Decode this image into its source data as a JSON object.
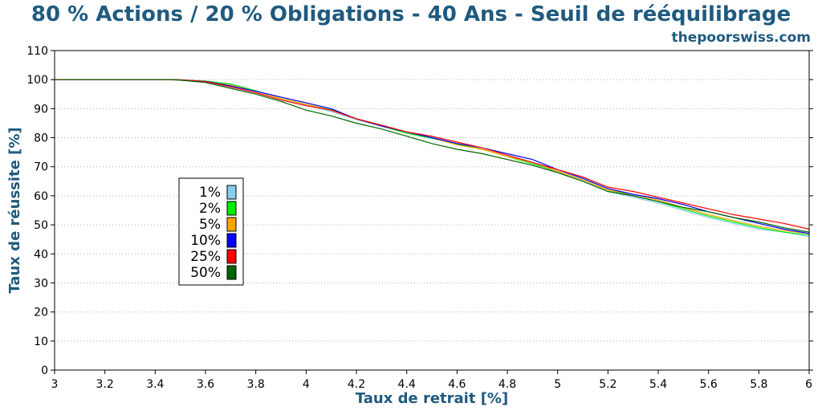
{
  "chart_data": {
    "type": "line",
    "title": "80 % Actions / 20 % Obligations - 40 Ans - Seuil de rééquilibrage",
    "watermark": "thepoorswiss.com",
    "xlabel": "Taux de retrait [%]",
    "ylabel": "Taux de réussite [%]",
    "xlim": [
      3,
      6
    ],
    "ylim": [
      0,
      110
    ],
    "xticks": [
      3,
      3.2,
      3.4,
      3.6,
      3.8,
      4,
      4.2,
      4.4,
      4.6,
      4.8,
      5,
      5.2,
      5.4,
      5.6,
      5.8,
      6
    ],
    "xtick_labels": [
      "3",
      "3.2",
      "3.4",
      "3.6",
      "3.8",
      "4",
      "4.2",
      "4.4",
      "4.6",
      "4.8",
      "5",
      "5.2",
      "5.4",
      "5.6",
      "5.8",
      "6"
    ],
    "yticks": [
      0,
      10,
      20,
      30,
      40,
      50,
      60,
      70,
      80,
      90,
      100,
      110
    ],
    "grid": "horizontal dotted",
    "legend_position": "center-left",
    "title_color": "#1f5a7f",
    "axis_label_color": "#1f5a7f",
    "x": [
      3.0,
      3.45,
      3.5,
      3.6,
      3.7,
      3.8,
      3.9,
      4.0,
      4.1,
      4.2,
      4.3,
      4.4,
      4.5,
      4.6,
      4.7,
      4.8,
      4.9,
      5.0,
      5.1,
      5.2,
      5.3,
      5.4,
      5.5,
      5.6,
      5.7,
      5.8,
      5.9,
      6.0
    ],
    "series": [
      {
        "name": "1%",
        "color": "#87ceeb",
        "values": [
          100,
          100,
          99.9,
          99.4,
          98.2,
          96.0,
          93.5,
          91.3,
          89.0,
          86.2,
          84.0,
          81.8,
          80.2,
          78.0,
          76.5,
          74.0,
          71.5,
          68.0,
          65.0,
          61.5,
          59.5,
          57.5,
          55.0,
          52.5,
          50.5,
          48.5,
          47.5,
          46.0
        ]
      },
      {
        "name": "2%",
        "color": "#00ee00",
        "values": [
          100,
          100,
          99.9,
          99.5,
          98.5,
          96.2,
          93.5,
          91.5,
          89.6,
          86.5,
          84.0,
          81.5,
          79.8,
          77.8,
          76.0,
          73.5,
          71.0,
          68.5,
          65.5,
          62.0,
          60.0,
          58.0,
          55.5,
          53.0,
          51.0,
          49.0,
          47.5,
          46.5
        ]
      },
      {
        "name": "5%",
        "color": "#ffa500",
        "values": [
          100,
          100,
          99.9,
          99.4,
          98.0,
          96.0,
          93.5,
          91.5,
          89.4,
          86.5,
          84.2,
          82.0,
          80.0,
          77.5,
          76.0,
          73.5,
          71.5,
          68.5,
          65.5,
          62.0,
          60.5,
          58.5,
          56.0,
          53.5,
          51.5,
          49.5,
          48.0,
          47.0
        ]
      },
      {
        "name": "10%",
        "color": "#0000ff",
        "values": [
          100,
          100,
          99.9,
          99.4,
          97.8,
          96.0,
          94.0,
          92.0,
          90.0,
          86.5,
          84.0,
          82.0,
          80.0,
          78.0,
          76.5,
          74.5,
          72.5,
          69.0,
          66.0,
          62.5,
          60.5,
          59.0,
          57.0,
          54.5,
          52.5,
          50.5,
          48.5,
          47.0
        ]
      },
      {
        "name": "25%",
        "color": "#ff0000",
        "values": [
          100,
          100,
          99.9,
          99.3,
          97.5,
          95.5,
          93.0,
          91.0,
          89.5,
          86.5,
          84.3,
          82.0,
          80.5,
          78.5,
          76.5,
          74.0,
          71.5,
          69.0,
          66.5,
          63.0,
          61.5,
          59.5,
          57.5,
          55.5,
          53.5,
          52.0,
          50.5,
          48.5
        ]
      },
      {
        "name": "50%",
        "color": "#006400",
        "values": [
          100,
          100,
          99.8,
          99.0,
          97.0,
          95.0,
          92.5,
          89.5,
          87.5,
          85.0,
          83.0,
          80.5,
          78.0,
          76.0,
          74.5,
          72.5,
          70.5,
          68.0,
          65.0,
          61.5,
          60.0,
          58.0,
          56.0,
          54.5,
          52.5,
          51.0,
          49.0,
          47.5
        ]
      }
    ]
  }
}
